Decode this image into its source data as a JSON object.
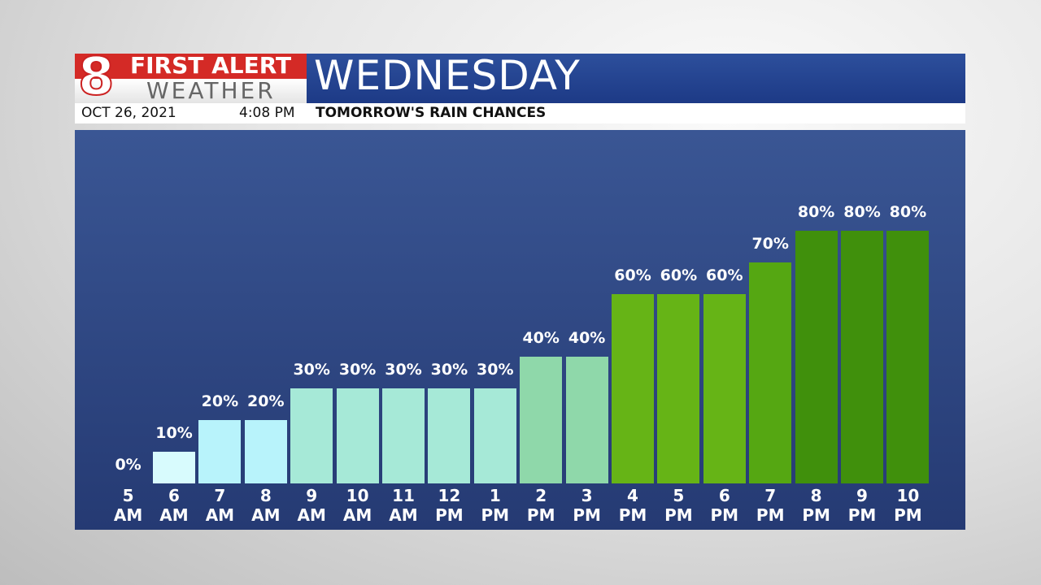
{
  "header": {
    "logo_number": "8",
    "logo_line1": "FIRST ALERT",
    "logo_line2": "WEATHER",
    "date": "OCT 26, 2021",
    "time": "4:08 PM"
  },
  "chart_data": {
    "type": "bar",
    "title": "WEDNESDAY",
    "subtitle": "TOMORROW'S RAIN CHANCES",
    "categories": [
      "5 AM",
      "6 AM",
      "7 AM",
      "8 AM",
      "9 AM",
      "10 AM",
      "11 AM",
      "12 PM",
      "1 PM",
      "2 PM",
      "3 PM",
      "4 PM",
      "5 PM",
      "6 PM",
      "7 PM",
      "8 PM",
      "9 PM",
      "10 PM"
    ],
    "values": [
      0,
      10,
      20,
      20,
      30,
      30,
      30,
      30,
      30,
      40,
      40,
      60,
      60,
      60,
      70,
      80,
      80,
      80
    ],
    "value_labels": [
      "0%",
      "10%",
      "20%",
      "20%",
      "30%",
      "30%",
      "30%",
      "30%",
      "30%",
      "40%",
      "40%",
      "60%",
      "60%",
      "60%",
      "70%",
      "80%",
      "80%",
      "80%"
    ],
    "colors": [
      "#e0fdff",
      "#d8fbfd",
      "#b8f3fb",
      "#b8f3fb",
      "#a6e9d7",
      "#a6e9d7",
      "#a6e9d7",
      "#a6e9d7",
      "#a6e9d7",
      "#8fd8aa",
      "#8fd8aa",
      "#66b416",
      "#66b416",
      "#66b416",
      "#55a712",
      "#40900c",
      "#40900c",
      "#40900c"
    ],
    "ylim": [
      0,
      100
    ]
  }
}
